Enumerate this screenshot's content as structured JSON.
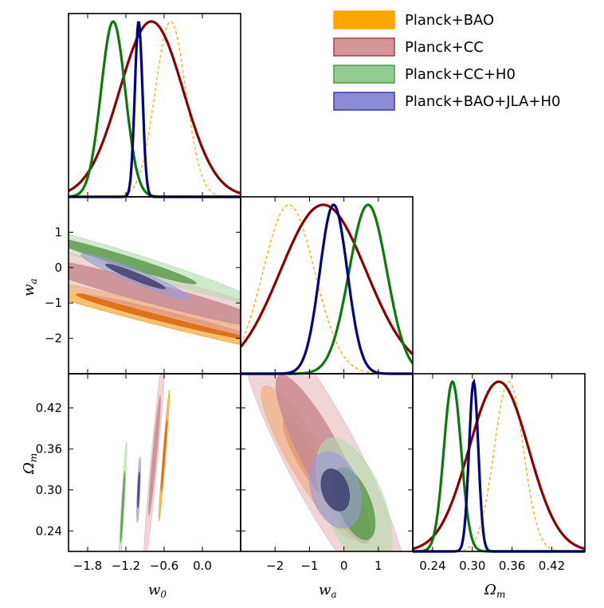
{
  "chart_data": {
    "type": "triangle-corner",
    "parameters": [
      {
        "id": "w0",
        "label": "w",
        "sub": "0",
        "range": [
          -2.1,
          0.6
        ],
        "ticks": [
          -1.8,
          -1.2,
          -0.6,
          0.0
        ],
        "tick_labels": [
          "−1.8",
          "−1.2",
          "−0.6",
          "0.0"
        ]
      },
      {
        "id": "wa",
        "label": "w",
        "sub": "a",
        "range": [
          -3.0,
          2.0
        ],
        "ticks": [
          -2,
          -1,
          0,
          1
        ],
        "tick_labels": [
          "−2",
          "−1",
          "0",
          "1"
        ]
      },
      {
        "id": "om",
        "label": "Ω",
        "sub": "m",
        "range": [
          0.21,
          0.47
        ],
        "ticks": [
          0.24,
          0.3,
          0.36,
          0.42
        ],
        "tick_labels": [
          "0.24",
          "0.30",
          "0.36",
          "0.42"
        ]
      }
    ],
    "y_axes": {
      "wa": {
        "ticks": [
          1,
          0,
          -1,
          -2
        ],
        "tick_labels": [
          "1",
          "0",
          "−1",
          "−2"
        ]
      },
      "om": {
        "ticks": [
          0.42,
          0.36,
          0.3,
          0.24
        ],
        "tick_labels": [
          "0.42",
          "0.36",
          "0.30",
          "0.24"
        ]
      }
    },
    "legend": {
      "position": "top-right",
      "entries": [
        {
          "label": "Planck+BAO",
          "color": "#ffa500",
          "edge": "#ffa500"
        },
        {
          "label": "Planck+CC",
          "color": "#d4979a",
          "edge": "#a04040"
        },
        {
          "label": "Planck+CC+H0",
          "color": "#92cc92",
          "edge": "#4a9a4a"
        },
        {
          "label": "Planck+BAO+JLA+H0",
          "color": "#8c8cd6",
          "edge": "#3a3aa0"
        }
      ]
    },
    "series": [
      {
        "name": "Planck+BAO",
        "line": "#ffa500",
        "dashed": true,
        "fill1": "#f59a18",
        "fill2": "#d9660a",
        "show_contours": true,
        "mean": {
          "w0": -0.5,
          "wa": -1.6,
          "om": 0.355
        },
        "sd": {
          "w0": 0.24,
          "wa": 0.75,
          "om": 0.022
        },
        "contours": {
          "w0-wa": {
            "center": [
              -0.55,
              -1.4
            ],
            "a": 2.6,
            "b": 0.15,
            "rho": -0.97
          },
          "w0-om": {
            "center": [
              -0.6,
              0.35
            ],
            "a": 0.085,
            "b": 0.012,
            "rho": 0.97
          },
          "wa-om": {
            "center": [
              -1.0,
              0.34
            ],
            "a": 1.4,
            "b": 0.014,
            "rho": -0.9
          }
        }
      },
      {
        "name": "Planck+CC",
        "line": "#8b0000",
        "dashed": false,
        "fill1": "#e8b9bc",
        "fill2": "#c88a90",
        "show_contours": true,
        "mean": {
          "w0": -0.8,
          "wa": -0.6,
          "om": 0.34
        },
        "sd": {
          "w0": 0.5,
          "wa": 1.25,
          "om": 0.045
        },
        "contours": {
          "w0-wa": {
            "center": [
              -0.85,
              -0.7
            ],
            "a": 3.8,
            "b": 0.24,
            "rho": -0.96
          },
          "w0-om": {
            "center": [
              -0.75,
              0.35
            ],
            "a": 0.17,
            "b": 0.02,
            "rho": 0.95
          },
          "wa-om": {
            "center": [
              -0.6,
              0.345
            ],
            "a": 2.5,
            "b": 0.028,
            "rho": -0.88
          }
        }
      },
      {
        "name": "Planck+CC+H0",
        "line": "#0a7a0a",
        "dashed": false,
        "fill1": "#b5dcb0",
        "fill2": "#5e9a4e",
        "show_contours": true,
        "mean": {
          "w0": -1.4,
          "wa": 0.7,
          "om": 0.27
        },
        "sd": {
          "w0": 0.19,
          "wa": 0.55,
          "om": 0.013
        },
        "contours": {
          "w0-wa": {
            "center": [
              -1.25,
              0.2
            ],
            "a": 2.1,
            "b": 0.15,
            "rho": -0.97
          },
          "w0-om": {
            "center": [
              -1.25,
              0.275
            ],
            "a": 0.065,
            "b": 0.012,
            "rho": 0.93
          },
          "wa-om": {
            "center": [
              0.3,
              0.28
            ],
            "a": 1.1,
            "b": 0.012,
            "rho": -0.55
          }
        }
      },
      {
        "name": "Planck+BAO+JLA+H0",
        "line": "#000080",
        "dashed": false,
        "fill1": "#9a9ad6",
        "fill2": "#404070",
        "show_contours": true,
        "mean": {
          "w0": -1.0,
          "wa": -0.3,
          "om": 0.302
        },
        "sd": {
          "w0": 0.06,
          "wa": 0.4,
          "om": 0.007
        },
        "contours": {
          "w0-wa": {
            "center": [
              -1.05,
              -0.25
            ],
            "a": 0.85,
            "b": 0.08,
            "rho": -0.95
          },
          "w0-om": {
            "center": [
              -1.0,
              0.3
            ],
            "a": 0.03,
            "b": 0.006,
            "rho": 0.7
          },
          "wa-om": {
            "center": [
              -0.25,
              0.3
            ],
            "a": 0.75,
            "b": 0.007,
            "rho": -0.3
          }
        }
      }
    ]
  }
}
